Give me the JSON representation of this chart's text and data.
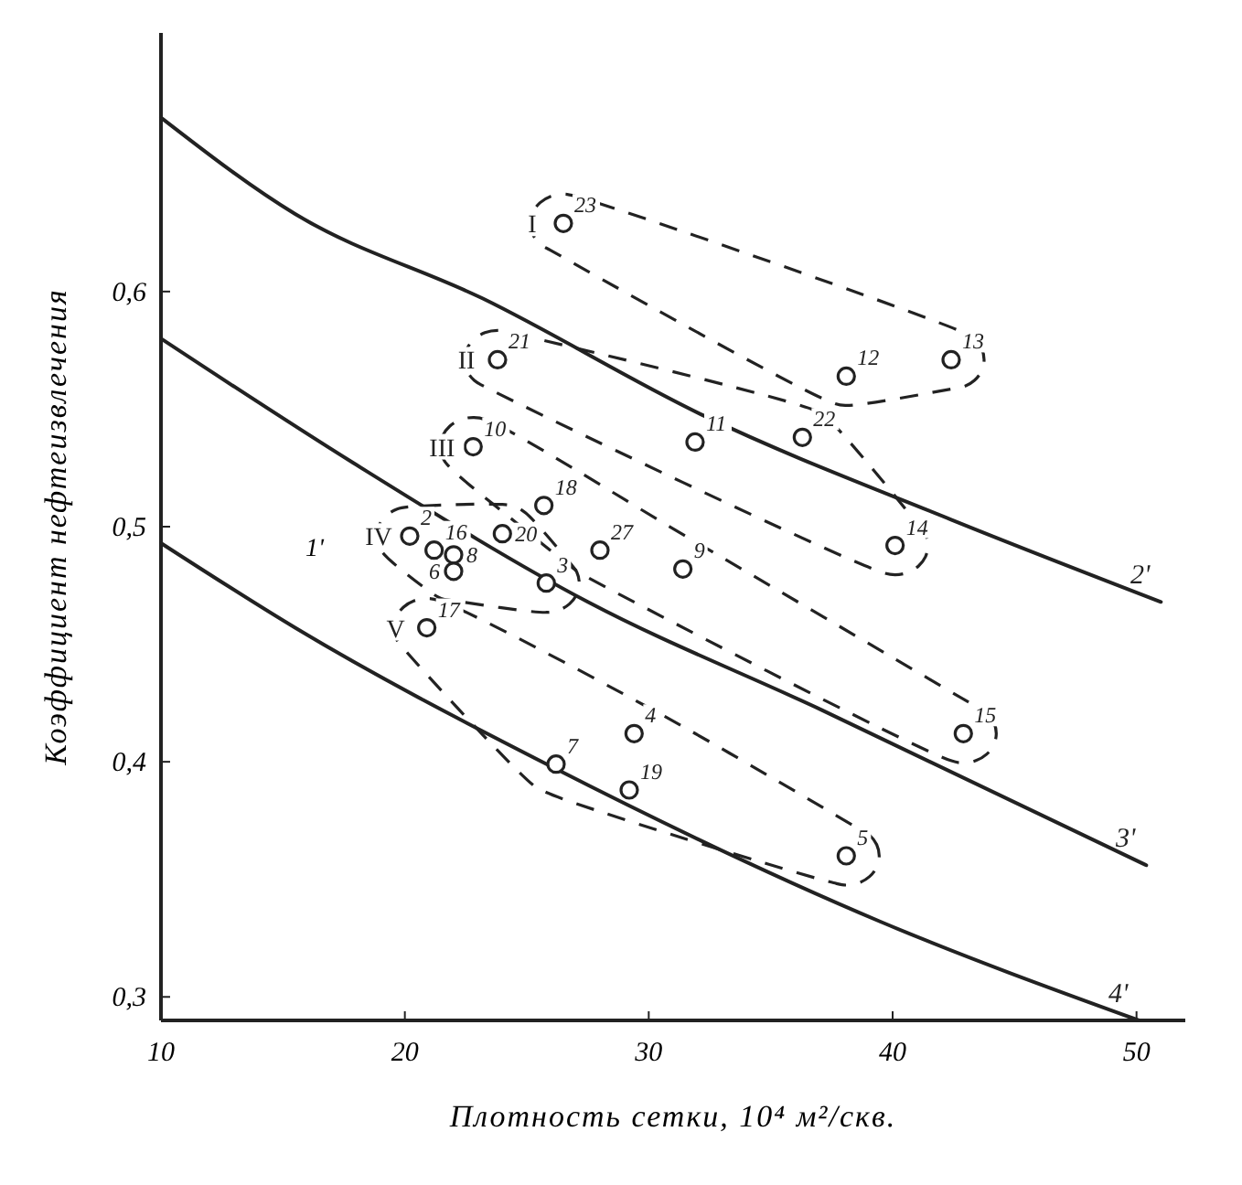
{
  "chart_data": {
    "type": "scatter",
    "xlabel": "Плотность сетки, 10⁴ м²/скв.",
    "ylabel": "Коэффициент нефтеизвлечения",
    "xlim": [
      10,
      52
    ],
    "ylim": [
      0.29,
      0.71
    ],
    "xticks": [
      10,
      20,
      30,
      40,
      50
    ],
    "yticks": [
      {
        "value": 0.3,
        "label": "0,3"
      },
      {
        "value": 0.4,
        "label": "0,4"
      },
      {
        "value": 0.5,
        "label": "0,5"
      },
      {
        "value": 0.6,
        "label": "0,6"
      }
    ],
    "grid": false,
    "legend": false,
    "series": [
      {
        "type": "line",
        "name": "2'",
        "color": "#222222",
        "marker": "none",
        "x": [
          10,
          15.5,
          23.2,
          32.3,
          42.4,
          51
        ],
        "values": [
          0.674,
          0.633,
          0.597,
          0.547,
          0.503,
          0.468
        ]
      },
      {
        "type": "line",
        "name": "3'",
        "color": "#222222",
        "marker": "none",
        "x": [
          10,
          17.9,
          27.5,
          37.1,
          50.4
        ],
        "values": [
          0.58,
          0.527,
          0.468,
          0.422,
          0.356
        ]
      },
      {
        "type": "line",
        "name": "4'",
        "color": "#222222",
        "marker": "none",
        "x": [
          10,
          15.5,
          26,
          39.5,
          50.1
        ],
        "values": [
          0.493,
          0.457,
          0.398,
          0.332,
          0.29
        ]
      },
      {
        "name": "I",
        "color": "#222222",
        "marker": "circle",
        "x": [
          26.5,
          38.1,
          42.4
        ],
        "values": [
          0.629,
          0.564,
          0.571
        ]
      },
      {
        "name": "II",
        "color": "#222222",
        "marker": "circle",
        "x": [
          23.8,
          31.9,
          36.3,
          40.1
        ],
        "values": [
          0.571,
          0.536,
          0.538,
          0.492
        ]
      },
      {
        "name": "III",
        "color": "#222222",
        "marker": "circle",
        "x": [
          22.8,
          25.7,
          28,
          31.4,
          42.9
        ],
        "values": [
          0.534,
          0.509,
          0.49,
          0.482,
          0.412
        ]
      },
      {
        "name": "IV",
        "color": "#222222",
        "marker": "circle",
        "x": [
          20.2,
          21.2,
          22,
          22,
          24,
          25.8
        ],
        "values": [
          0.496,
          0.49,
          0.488,
          0.481,
          0.497,
          0.476
        ]
      },
      {
        "name": "V",
        "color": "#222222",
        "marker": "circle",
        "x": [
          20.9,
          29.4,
          26.2,
          29.2,
          38.1
        ],
        "values": [
          0.457,
          0.412,
          0.399,
          0.388,
          0.36
        ]
      }
    ],
    "annotations": [
      {
        "text": "23",
        "x": 26.5,
        "y": 0.629
      },
      {
        "text": "12",
        "x": 38.1,
        "y": 0.564
      },
      {
        "text": "13",
        "x": 42.4,
        "y": 0.571
      },
      {
        "text": "21",
        "x": 23.8,
        "y": 0.571
      },
      {
        "text": "11",
        "x": 31.9,
        "y": 0.536
      },
      {
        "text": "22",
        "x": 36.3,
        "y": 0.538
      },
      {
        "text": "14",
        "x": 40.1,
        "y": 0.492
      },
      {
        "text": "10",
        "x": 22.8,
        "y": 0.534
      },
      {
        "text": "18",
        "x": 25.7,
        "y": 0.509
      },
      {
        "text": "27",
        "x": 28,
        "y": 0.49
      },
      {
        "text": "9",
        "x": 31.4,
        "y": 0.482
      },
      {
        "text": "15",
        "x": 42.9,
        "y": 0.412
      },
      {
        "text": "2",
        "x": 20.2,
        "y": 0.496
      },
      {
        "text": "16",
        "x": 21.2,
        "y": 0.49
      },
      {
        "text": "8",
        "x": 22,
        "y": 0.488
      },
      {
        "text": "6",
        "x": 22,
        "y": 0.481
      },
      {
        "text": "20",
        "x": 24,
        "y": 0.497
      },
      {
        "text": "3",
        "x": 25.8,
        "y": 0.476
      },
      {
        "text": "17",
        "x": 20.9,
        "y": 0.457
      },
      {
        "text": "4",
        "x": 29.4,
        "y": 0.412
      },
      {
        "text": "7",
        "x": 26.2,
        "y": 0.399
      },
      {
        "text": "19",
        "x": 29.2,
        "y": 0.388
      },
      {
        "text": "5",
        "x": 38.1,
        "y": 0.36
      },
      "1'"
    ]
  }
}
